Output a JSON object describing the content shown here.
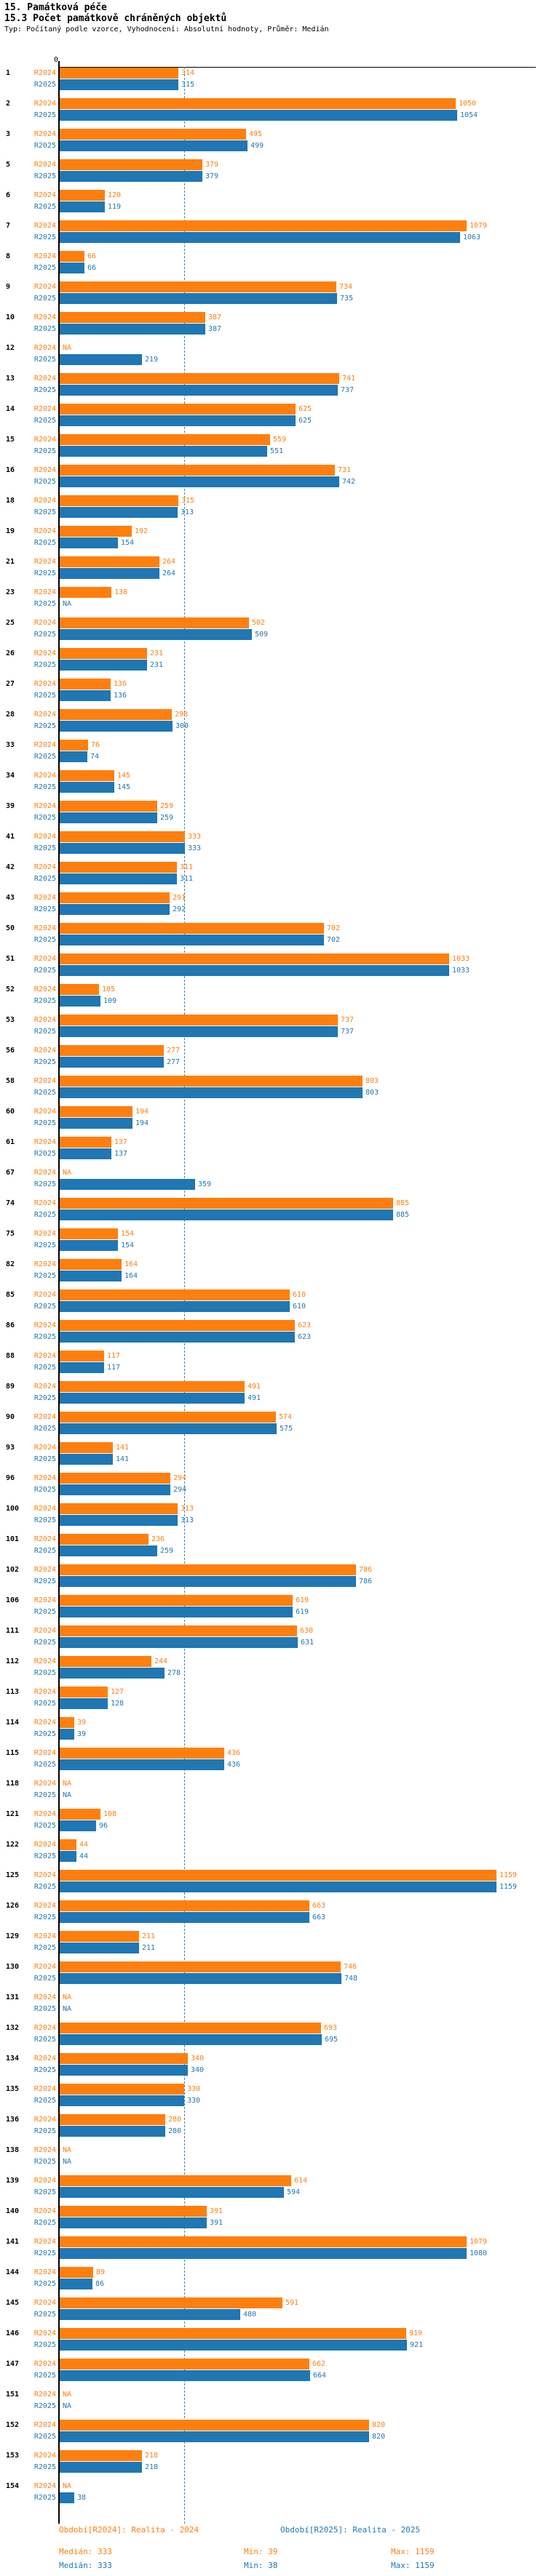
{
  "header": {
    "title": "15. Památková péče",
    "subtitle": "15.3 Počet památkově chráněných objektů",
    "meta": "Typ: Počítaný podle vzorce, Vyhodnocení: Absolutní hodnoty, Průměr: Medián"
  },
  "colors": {
    "r2024": "#ff7f0e",
    "r2025": "#1f77b4",
    "median_line": "#3c87b0",
    "axis": "#000000"
  },
  "chart_data": {
    "type": "bar",
    "orientation": "horizontal",
    "series_labels": [
      "R2024",
      "R2025"
    ],
    "axis_zero_label": "0",
    "na_label": "NA",
    "xlim": [
      0,
      1159
    ],
    "median_value": 333,
    "grid": "median-line-only",
    "rows": [
      {
        "id": "1",
        "r2024": 314,
        "r2025": 315
      },
      {
        "id": "2",
        "r2024": 1050,
        "r2025": 1054
      },
      {
        "id": "3",
        "r2024": 495,
        "r2025": 499
      },
      {
        "id": "5",
        "r2024": 379,
        "r2025": 379
      },
      {
        "id": "6",
        "r2024": 120,
        "r2025": 119
      },
      {
        "id": "7",
        "r2024": 1079,
        "r2025": 1063
      },
      {
        "id": "8",
        "r2024": 66,
        "r2025": 66
      },
      {
        "id": "9",
        "r2024": 734,
        "r2025": 735
      },
      {
        "id": "10",
        "r2024": 387,
        "r2025": 387
      },
      {
        "id": "12",
        "r2024": null,
        "r2025": 219
      },
      {
        "id": "13",
        "r2024": 741,
        "r2025": 737
      },
      {
        "id": "14",
        "r2024": 625,
        "r2025": 625
      },
      {
        "id": "15",
        "r2024": 559,
        "r2025": 551
      },
      {
        "id": "16",
        "r2024": 731,
        "r2025": 742
      },
      {
        "id": "18",
        "r2024": 315,
        "r2025": 313
      },
      {
        "id": "19",
        "r2024": 192,
        "r2025": 154
      },
      {
        "id": "21",
        "r2024": 264,
        "r2025": 264
      },
      {
        "id": "23",
        "r2024": 138,
        "r2025": null
      },
      {
        "id": "25",
        "r2024": 502,
        "r2025": 509
      },
      {
        "id": "26",
        "r2024": 231,
        "r2025": 231
      },
      {
        "id": "27",
        "r2024": 136,
        "r2025": 136
      },
      {
        "id": "28",
        "r2024": 298,
        "r2025": 300
      },
      {
        "id": "33",
        "r2024": 76,
        "r2025": 74
      },
      {
        "id": "34",
        "r2024": 145,
        "r2025": 145
      },
      {
        "id": "39",
        "r2024": 259,
        "r2025": 259
      },
      {
        "id": "41",
        "r2024": 333,
        "r2025": 333
      },
      {
        "id": "42",
        "r2024": 311,
        "r2025": 311
      },
      {
        "id": "43",
        "r2024": 291,
        "r2025": 292
      },
      {
        "id": "50",
        "r2024": 702,
        "r2025": 702
      },
      {
        "id": "51",
        "r2024": 1033,
        "r2025": 1033
      },
      {
        "id": "52",
        "r2024": 105,
        "r2025": 109
      },
      {
        "id": "53",
        "r2024": 737,
        "r2025": 737
      },
      {
        "id": "56",
        "r2024": 277,
        "r2025": 277
      },
      {
        "id": "58",
        "r2024": 803,
        "r2025": 803
      },
      {
        "id": "60",
        "r2024": 194,
        "r2025": 194
      },
      {
        "id": "61",
        "r2024": 137,
        "r2025": 137
      },
      {
        "id": "67",
        "r2024": null,
        "r2025": 359
      },
      {
        "id": "74",
        "r2024": 885,
        "r2025": 885
      },
      {
        "id": "75",
        "r2024": 154,
        "r2025": 154
      },
      {
        "id": "82",
        "r2024": 164,
        "r2025": 164
      },
      {
        "id": "85",
        "r2024": 610,
        "r2025": 610
      },
      {
        "id": "86",
        "r2024": 623,
        "r2025": 623
      },
      {
        "id": "88",
        "r2024": 117,
        "r2025": 117
      },
      {
        "id": "89",
        "r2024": 491,
        "r2025": 491
      },
      {
        "id": "90",
        "r2024": 574,
        "r2025": 575
      },
      {
        "id": "93",
        "r2024": 141,
        "r2025": 141
      },
      {
        "id": "96",
        "r2024": 294,
        "r2025": 294
      },
      {
        "id": "100",
        "r2024": 313,
        "r2025": 313
      },
      {
        "id": "101",
        "r2024": 236,
        "r2025": 259
      },
      {
        "id": "102",
        "r2024": 786,
        "r2025": 786
      },
      {
        "id": "106",
        "r2024": 619,
        "r2025": 619
      },
      {
        "id": "111",
        "r2024": 630,
        "r2025": 631
      },
      {
        "id": "112",
        "r2024": 244,
        "r2025": 278
      },
      {
        "id": "113",
        "r2024": 127,
        "r2025": 128
      },
      {
        "id": "114",
        "r2024": 39,
        "r2025": 39
      },
      {
        "id": "115",
        "r2024": 436,
        "r2025": 436
      },
      {
        "id": "118",
        "r2024": null,
        "r2025": null
      },
      {
        "id": "121",
        "r2024": 108,
        "r2025": 96
      },
      {
        "id": "122",
        "r2024": 44,
        "r2025": 44
      },
      {
        "id": "125",
        "r2024": 1159,
        "r2025": 1159
      },
      {
        "id": "126",
        "r2024": 663,
        "r2025": 663
      },
      {
        "id": "129",
        "r2024": 211,
        "r2025": 211
      },
      {
        "id": "130",
        "r2024": 746,
        "r2025": 748
      },
      {
        "id": "131",
        "r2024": null,
        "r2025": null
      },
      {
        "id": "132",
        "r2024": 693,
        "r2025": 695
      },
      {
        "id": "134",
        "r2024": 340,
        "r2025": 340
      },
      {
        "id": "135",
        "r2024": 330,
        "r2025": 330
      },
      {
        "id": "136",
        "r2024": 280,
        "r2025": 280
      },
      {
        "id": "138",
        "r2024": null,
        "r2025": null
      },
      {
        "id": "139",
        "r2024": 614,
        "r2025": 594
      },
      {
        "id": "140",
        "r2024": 391,
        "r2025": 391
      },
      {
        "id": "141",
        "r2024": 1079,
        "r2025": 1080
      },
      {
        "id": "144",
        "r2024": 89,
        "r2025": 86
      },
      {
        "id": "145",
        "r2024": 591,
        "r2025": 480
      },
      {
        "id": "146",
        "r2024": 919,
        "r2025": 921
      },
      {
        "id": "147",
        "r2024": 662,
        "r2025": 664
      },
      {
        "id": "151",
        "r2024": null,
        "r2025": null
      },
      {
        "id": "152",
        "r2024": 820,
        "r2025": 820
      },
      {
        "id": "153",
        "r2024": 218,
        "r2025": 218
      },
      {
        "id": "154",
        "r2024": null,
        "r2025": 38
      }
    ]
  },
  "footer": {
    "legend_r2024": "Období[R2024]: Realita - 2024",
    "legend_r2025": "Období[R2025]: Realita - 2025",
    "stats_r2024": {
      "median": "Medián: 333",
      "min": "Min: 39",
      "max": "Max: 1159"
    },
    "stats_r2025": {
      "median": "Medián: 333",
      "min": "Min: 38",
      "max": "Max: 1159"
    }
  }
}
